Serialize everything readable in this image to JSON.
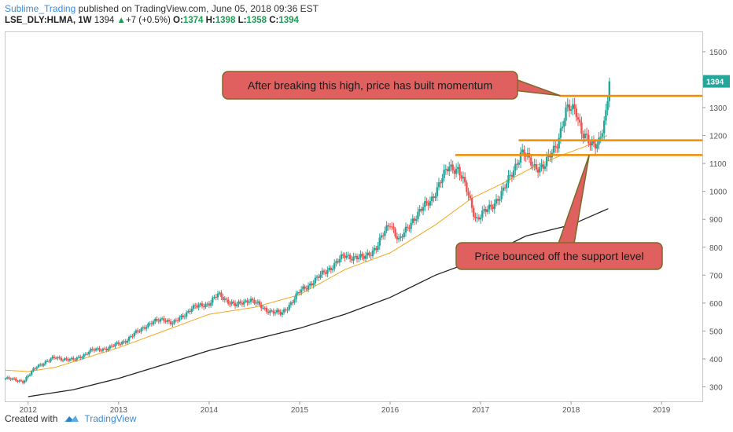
{
  "header": {
    "author": "Sublime_Trading",
    "published": "published on TradingView.com, June 05, 2018 09:36 EST",
    "symbol": "LSE_DLY:HLMA, 1W",
    "last": "1394",
    "change_arrow": "▲",
    "change": "+7 (+0.5%)",
    "o_label": "O:",
    "o_value": "1374",
    "h_label": "H:",
    "h_value": "1398",
    "l_label": "L:",
    "l_value": "1358",
    "c_label": "C:",
    "c_value": "1394"
  },
  "footer": {
    "created_with": "Created with",
    "brand": "TradingView",
    "logo_icon": "tradingview-logo-icon"
  },
  "colors": {
    "up": "#26a69a",
    "down": "#ef5350",
    "ma_fast": "#f5a623",
    "ma_slow": "#222222",
    "level": "#f28c00",
    "callout_fill": "#e06060",
    "callout_border": "#7a6a2a",
    "price_tag": "#26a69a"
  },
  "chart_data": {
    "type": "candlestick",
    "title": "",
    "xlabel": "",
    "ylabel": "",
    "xlim": [
      2011.75,
      2019.45
    ],
    "ylim": [
      248,
      1570
    ],
    "x_ticks": [
      "2012",
      "2013",
      "2014",
      "2015",
      "2016",
      "2017",
      "2018",
      "2019"
    ],
    "y_ticks": [
      300,
      400,
      500,
      600,
      700,
      800,
      900,
      1000,
      1100,
      1200,
      1300,
      1400,
      1500
    ],
    "last_price_label": "1394",
    "last_price": 1394,
    "price_path": [
      [
        2011.75,
        330
      ],
      [
        2011.95,
        320
      ],
      [
        2012.1,
        375
      ],
      [
        2012.3,
        405
      ],
      [
        2012.5,
        395
      ],
      [
        2012.7,
        430
      ],
      [
        2012.9,
        440
      ],
      [
        2013.1,
        470
      ],
      [
        2013.3,
        520
      ],
      [
        2013.5,
        545
      ],
      [
        2013.6,
        525
      ],
      [
        2013.8,
        580
      ],
      [
        2014.0,
        600
      ],
      [
        2014.1,
        630
      ],
      [
        2014.3,
        590
      ],
      [
        2014.45,
        615
      ],
      [
        2014.6,
        580
      ],
      [
        2014.8,
        560
      ],
      [
        2015.0,
        640
      ],
      [
        2015.2,
        690
      ],
      [
        2015.35,
        730
      ],
      [
        2015.5,
        770
      ],
      [
        2015.7,
        760
      ],
      [
        2015.85,
        800
      ],
      [
        2016.0,
        890
      ],
      [
        2016.1,
        820
      ],
      [
        2016.25,
        900
      ],
      [
        2016.45,
        970
      ],
      [
        2016.65,
        1090
      ],
      [
        2016.75,
        1080
      ],
      [
        2016.85,
        1000
      ],
      [
        2016.95,
        900
      ],
      [
        2017.1,
        940
      ],
      [
        2017.25,
        1000
      ],
      [
        2017.45,
        1140
      ],
      [
        2017.6,
        1090
      ],
      [
        2017.7,
        1085
      ],
      [
        2017.85,
        1180
      ],
      [
        2017.95,
        1290
      ],
      [
        2018.05,
        1300
      ],
      [
        2018.12,
        1210
      ],
      [
        2018.22,
        1160
      ],
      [
        2018.3,
        1180
      ],
      [
        2018.38,
        1260
      ],
      [
        2018.43,
        1394
      ]
    ],
    "series": [
      {
        "values": [
          [
            2011.75,
            360
          ],
          [
            2012.0,
            355
          ],
          [
            2012.3,
            370
          ],
          [
            2012.6,
            400
          ],
          [
            2013.0,
            440
          ],
          [
            2013.5,
            500
          ],
          [
            2014.0,
            560
          ],
          [
            2014.5,
            585
          ],
          [
            2015.0,
            630
          ],
          [
            2015.5,
            720
          ],
          [
            2016.0,
            780
          ],
          [
            2016.5,
            880
          ],
          [
            2016.9,
            975
          ],
          [
            2017.25,
            1030
          ],
          [
            2017.6,
            1090
          ],
          [
            2017.9,
            1130
          ],
          [
            2018.15,
            1160
          ],
          [
            2018.4,
            1200
          ]
        ]
      },
      {
        "values": [
          [
            2012.0,
            265
          ],
          [
            2012.5,
            290
          ],
          [
            2013.0,
            330
          ],
          [
            2013.5,
            380
          ],
          [
            2014.0,
            430
          ],
          [
            2014.5,
            470
          ],
          [
            2015.0,
            510
          ],
          [
            2015.5,
            560
          ],
          [
            2016.0,
            620
          ],
          [
            2016.5,
            700
          ],
          [
            2017.0,
            760
          ],
          [
            2017.5,
            840
          ],
          [
            2018.0,
            880
          ],
          [
            2018.41,
            938
          ]
        ]
      }
    ],
    "levels": [
      {
        "value": 1342,
        "x_start": 2017.87
      },
      {
        "value": 1183,
        "x_start": 2017.42
      },
      {
        "value": 1130,
        "x_start": 2016.72
      }
    ],
    "annotations": [
      {
        "text": "After breaking this high, price has built momentum",
        "target_x": 2017.88,
        "target_y": 1343
      },
      {
        "text": "Price bounced off the support level",
        "target_x": 2018.2,
        "target_y": 1130
      }
    ]
  }
}
